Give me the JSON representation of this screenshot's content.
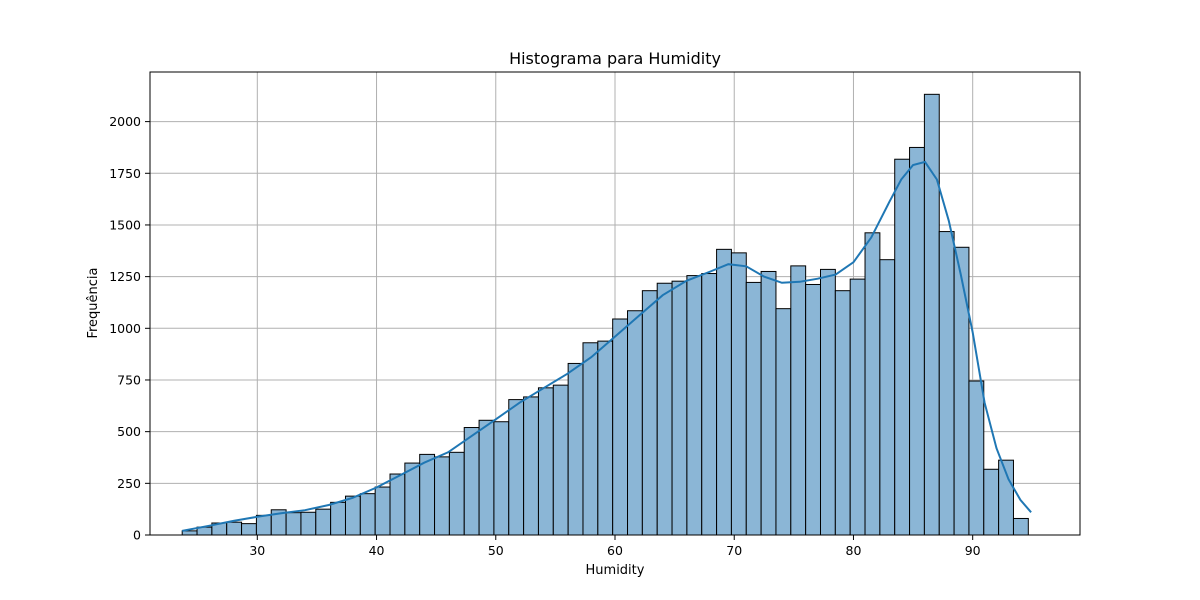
{
  "chart_data": {
    "type": "histogram",
    "title": "Histograma para Humidity",
    "xlabel": "Humidity",
    "ylabel": "Frequência",
    "xlim": [
      21,
      99
    ],
    "ylim": [
      0,
      2240
    ],
    "x_ticks": [
      30,
      40,
      50,
      60,
      70,
      80,
      90
    ],
    "y_ticks": [
      0,
      250,
      500,
      750,
      1000,
      1250,
      1500,
      1750,
      2000
    ],
    "grid": true,
    "bar_color": "#8bb6d6",
    "bar_edge_color": "#000000",
    "kde_color": "#1f77b4",
    "bin_start": 23.7,
    "bin_width": 1.245,
    "counts": [
      20,
      38,
      58,
      62,
      55,
      95,
      122,
      108,
      110,
      125,
      158,
      188,
      200,
      232,
      295,
      348,
      390,
      378,
      400,
      520,
      555,
      548,
      655,
      668,
      712,
      725,
      830,
      930,
      938,
      1045,
      1085,
      1182,
      1218,
      1228,
      1255,
      1265,
      1382,
      1365,
      1222,
      1275,
      1095,
      1302,
      1212,
      1285,
      1182,
      1238,
      1462,
      1332,
      1818,
      1875,
      2132,
      1468,
      1392,
      745,
      318,
      362,
      80
    ],
    "kde": {
      "x": [
        23.7,
        26,
        28,
        30,
        32,
        34,
        36,
        38,
        40,
        42,
        44,
        46,
        48,
        50,
        52,
        54,
        56,
        58,
        60,
        62,
        64,
        66,
        68,
        69.5,
        71,
        72.5,
        74,
        75.5,
        77,
        78.5,
        80,
        81.5,
        83,
        84,
        85,
        86,
        87,
        88,
        89,
        90,
        91,
        92,
        93,
        94,
        94.9
      ],
      "y": [
        20,
        45,
        68,
        88,
        105,
        120,
        145,
        180,
        230,
        290,
        350,
        400,
        480,
        560,
        640,
        710,
        780,
        860,
        960,
        1060,
        1160,
        1230,
        1275,
        1310,
        1300,
        1250,
        1220,
        1225,
        1240,
        1260,
        1320,
        1440,
        1610,
        1720,
        1790,
        1805,
        1720,
        1520,
        1260,
        980,
        640,
        420,
        270,
        170,
        110
      ]
    }
  }
}
